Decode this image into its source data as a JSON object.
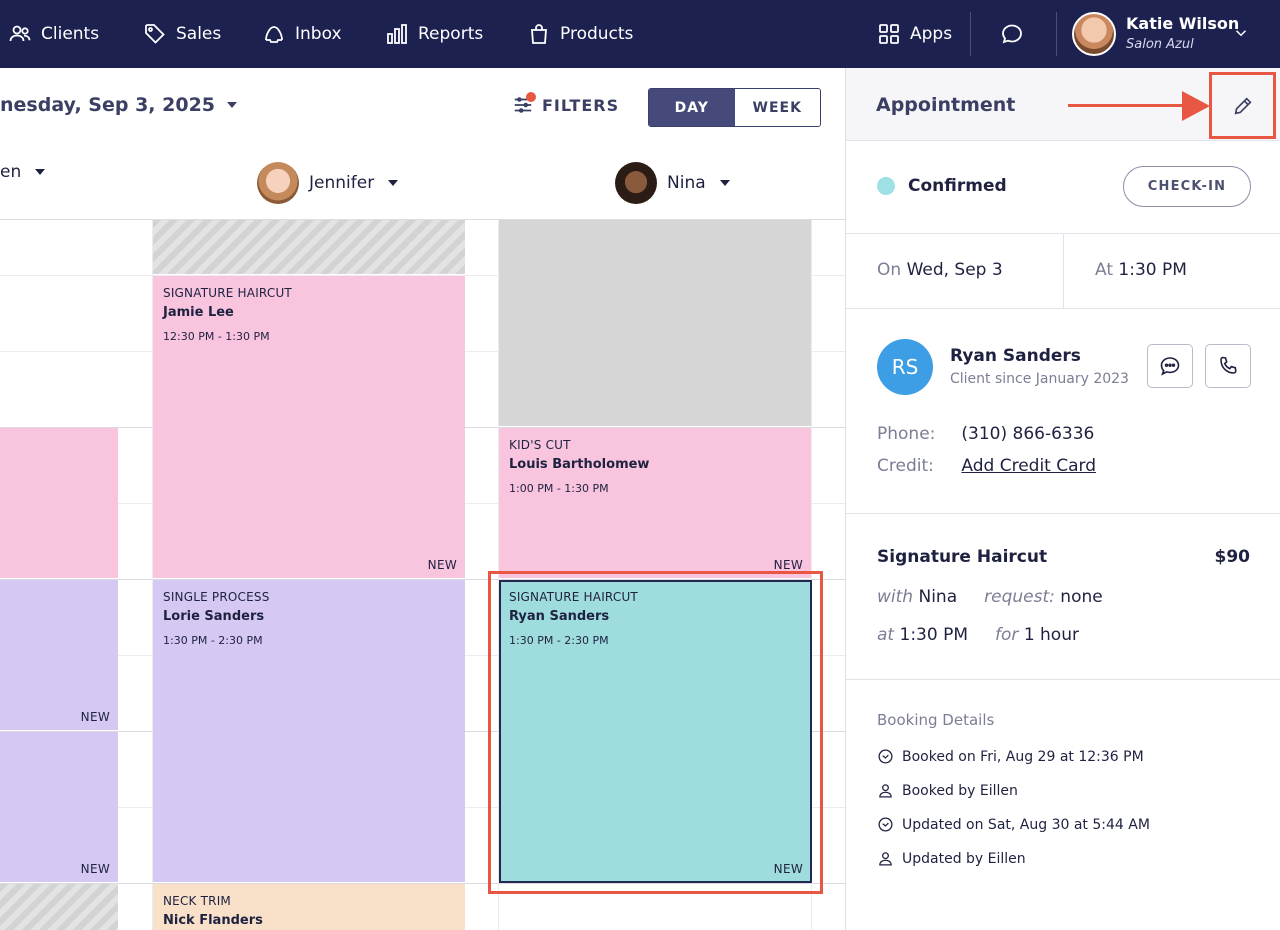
{
  "nav": {
    "clients": "Clients",
    "sales": "Sales",
    "inbox": "Inbox",
    "reports": "Reports",
    "products": "Products",
    "apps": "Apps",
    "user_name": "Katie Wilson",
    "user_salon": "Salon Azul"
  },
  "calendar": {
    "date_label": "nesday, Sep 3, 2025",
    "filters_label": "FILTERS",
    "view_day": "DAY",
    "view_week": "WEEK",
    "staff": [
      {
        "name": "en"
      },
      {
        "name": "Jennifer"
      },
      {
        "name": "Nina"
      }
    ],
    "appointments": [
      {
        "service": "SIGNATURE HAIRCUT",
        "client": "Jamie Lee",
        "time": "12:30 PM - 1:30 PM",
        "tag": "NEW"
      },
      {
        "service": "SINGLE PROCESS",
        "client": "Lorie Sanders",
        "time": "1:30 PM - 2:30 PM",
        "tag": ""
      },
      {
        "service": "NECK TRIM",
        "client": "Nick Flanders",
        "time": "",
        "tag": ""
      },
      {
        "service": "KID'S CUT",
        "client": "Louis Bartholomew",
        "time": "1:00 PM - 1:30 PM",
        "tag": "NEW"
      },
      {
        "service": "SIGNATURE HAIRCUT",
        "client": "Ryan Sanders",
        "time": "1:30 PM - 2:30 PM",
        "tag": "NEW"
      },
      {
        "tag": "NEW"
      },
      {
        "tag": "NEW"
      }
    ]
  },
  "panel": {
    "title": "Appointment",
    "status": "Confirmed",
    "checkin_label": "CHECK-IN",
    "on_label": "On",
    "on_value": "Wed, Sep 3",
    "at_label": "At",
    "at_value": "1:30 PM",
    "client": {
      "initials": "RS",
      "name": "Ryan Sanders",
      "since": "Client since January 2023",
      "phone_label": "Phone:",
      "phone": "(310) 866-6336",
      "credit_label": "Credit:",
      "credit_action": "Add Credit Card"
    },
    "service": {
      "name": "Signature Haircut",
      "price": "$90",
      "with_label": "with",
      "with_value": "Nina",
      "request_label": "request:",
      "request_value": "none",
      "at_label": "at",
      "at_value": "1:30 PM",
      "for_label": "for",
      "for_value": "1 hour"
    },
    "booking": {
      "title": "Booking Details",
      "items": [
        {
          "icon": "clock-icon",
          "text": "Booked on Fri, Aug 29 at 12:36 PM"
        },
        {
          "icon": "person-icon",
          "text": "Booked by Eillen"
        },
        {
          "icon": "clock-icon",
          "text": "Updated on Sat, Aug 30 at 5:44 AM"
        },
        {
          "icon": "person-icon",
          "text": "Updated by Eillen"
        }
      ]
    }
  },
  "colors": {
    "nav_bg": "#1d2150",
    "pink": "#f8c4de",
    "purple": "#d5c8f3",
    "teal": "#9edcde",
    "peach": "#f9e0c9",
    "highlight": "#e85644",
    "confirmed": "#9fe0e4",
    "avatar_blue": "#3d9ee6"
  }
}
